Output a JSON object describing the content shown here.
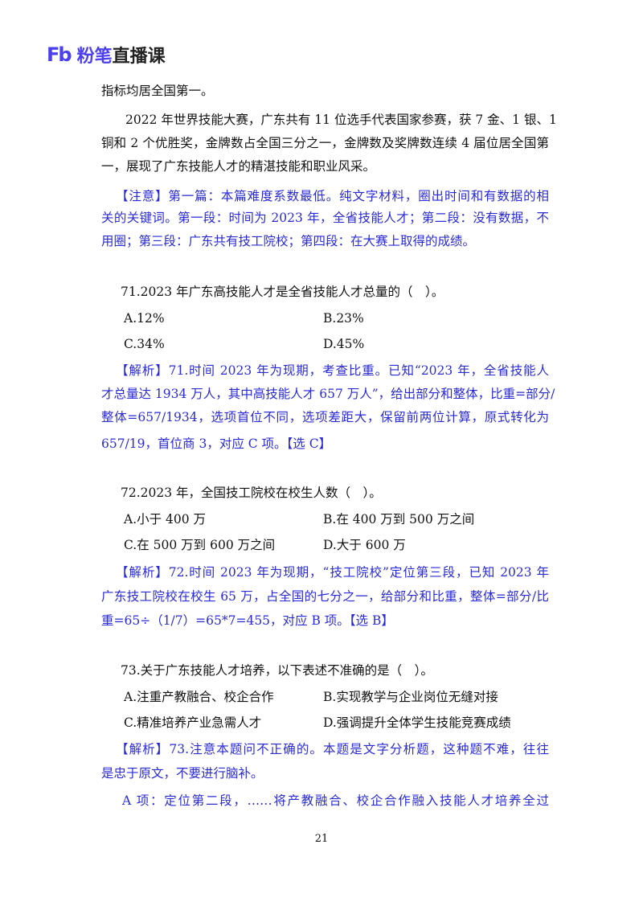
{
  "header": {
    "logo_mark": "Fb",
    "logo_brand": "粉笔",
    "logo_product": "直播课"
  },
  "paragraphs": {
    "p0": [
      "指标均居全国第一。"
    ],
    "p1": [
      "2022 年世界技能大赛，广东共有 11 位选手代表国家参赛，获 7 金、1 银、1",
      "铜和 2 个优胜奖，金牌数占全国三分之一，金牌数及奖牌数连续 4 届位居全国第",
      "一，展现了广东技能人才的精湛技能和职业风采。"
    ],
    "note": [
      "【注意】第一篇：本篇难度系数最低。纯文字材料，圈出时间和有数据的相",
      "关的关键词。第一段：时间为 2023 年，全省技能人才；第二段：没有数据，不",
      "用圈；第三段：广东共有技工院校；第四段：在大赛上取得的成绩。"
    ]
  },
  "questions": [
    {
      "stem": "71.2023 年广东高技能人才是全省技能人才总量的（　）。",
      "options": [
        "A.12%",
        "B.23%",
        "C.34%",
        "D.45%"
      ],
      "analysis": [
        "【解析】71.时间 2023 年为现期，考查比重。已知“2023 年，全省技能人",
        "才总量达 1934 万人，其中高技能人才 657 万人”，给出部分和整体，比重=部分/",
        "整体=657/1934，选项首位不同，选项差距大，保留前两位计算，原式转化为",
        "657/19，首位商 3，对应 C 项。【选 C】"
      ]
    },
    {
      "stem": "72.2023 年，全国技工院校在校生人数（　）。",
      "options": [
        "A.小于 400 万",
        "B.在 400 万到 500 万之间",
        "C.在 500 万到 600 万之间",
        "D.大于 600 万"
      ],
      "analysis": [
        "【解析】72.时间 2023 年为现期，“技工院校”定位第三段，已知 2023 年",
        "广东技工院校在校生 65 万，占全国的七分之一，给部分和比重，整体=部分/比",
        "重=65÷（1/7）=65*7=455，对应 B 项。【选 B】"
      ]
    },
    {
      "stem": "73.关于广东技能人才培养，以下表述不准确的是（　）。",
      "options": [
        "A.注重产教融合、校企合作",
        "B.实现教学与企业岗位无缝对接",
        "C.精准培养产业急需人才",
        "D.强调提升全体学生技能竞赛成绩"
      ],
      "analysis": [
        "【解析】73.注意本题问不正确的。本题是文字分析题，这种题不难，往往",
        "是忠于原文，不要进行脑补。",
        "A 项：定位第二段，……将产教融合、校企合作融入技能人才培养全过"
      ]
    }
  ],
  "page_number": "21",
  "colors": {
    "brand": "#4b3ff0",
    "annotation_blue": "#2a2ad6"
  }
}
